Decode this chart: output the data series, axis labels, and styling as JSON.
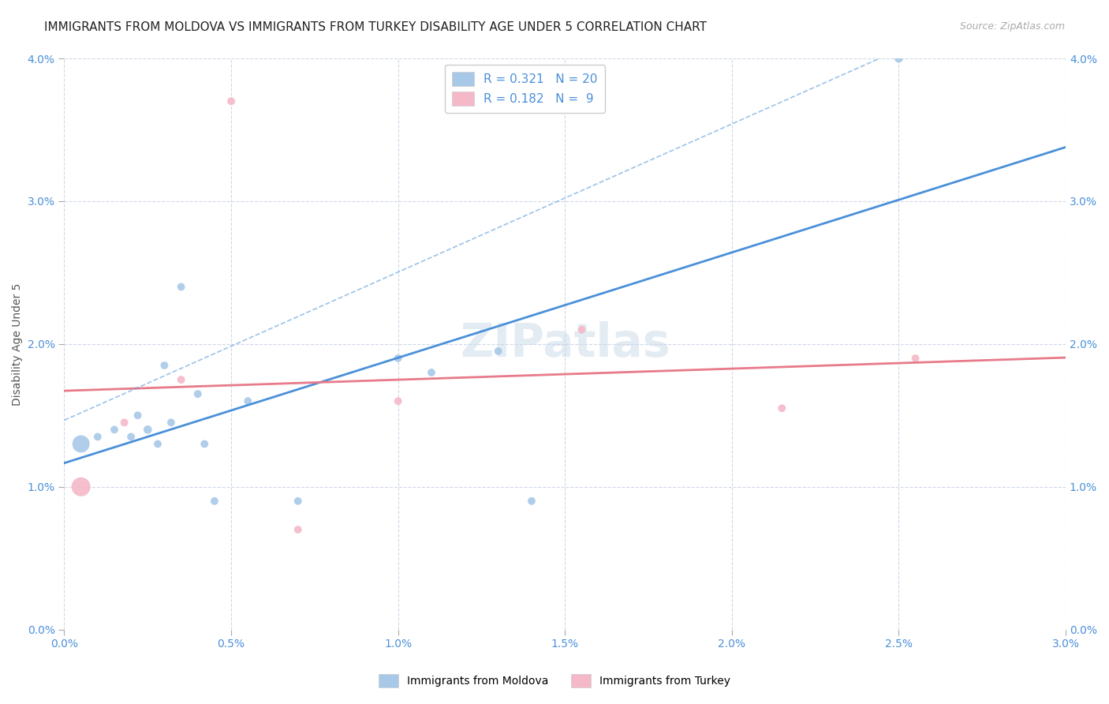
{
  "title": "IMMIGRANTS FROM MOLDOVA VS IMMIGRANTS FROM TURKEY DISABILITY AGE UNDER 5 CORRELATION CHART",
  "source": "Source: ZipAtlas.com",
  "ylabel": "Disability Age Under 5",
  "xlim": [
    0.0,
    0.03
  ],
  "ylim": [
    0.0,
    0.04
  ],
  "xtick_vals": [
    0.0,
    0.005,
    0.01,
    0.015,
    0.02,
    0.025,
    0.03
  ],
  "ytick_vals": [
    0.0,
    0.01,
    0.02,
    0.03,
    0.04
  ],
  "moldova_x": [
    0.0005,
    0.001,
    0.0015,
    0.002,
    0.0022,
    0.0025,
    0.0028,
    0.003,
    0.0032,
    0.0035,
    0.004,
    0.0042,
    0.0045,
    0.0055,
    0.007,
    0.01,
    0.011,
    0.013,
    0.014,
    0.025
  ],
  "moldova_y": [
    0.013,
    0.0135,
    0.014,
    0.0135,
    0.015,
    0.014,
    0.013,
    0.0185,
    0.0145,
    0.024,
    0.0165,
    0.013,
    0.009,
    0.016,
    0.009,
    0.019,
    0.018,
    0.0195,
    0.009,
    0.04
  ],
  "moldova_sizes": [
    250,
    50,
    50,
    50,
    50,
    60,
    50,
    50,
    50,
    50,
    50,
    50,
    50,
    50,
    50,
    50,
    50,
    50,
    50,
    60
  ],
  "turkey_x": [
    0.0005,
    0.0018,
    0.0035,
    0.005,
    0.007,
    0.01,
    0.0155,
    0.0215,
    0.0255
  ],
  "turkey_y": [
    0.01,
    0.0145,
    0.0175,
    0.037,
    0.007,
    0.016,
    0.021,
    0.0155,
    0.019
  ],
  "turkey_sizes": [
    300,
    50,
    50,
    50,
    50,
    50,
    50,
    50,
    50
  ],
  "moldova_color": "#a8c8e8",
  "turkey_color": "#f4b8c8",
  "moldova_line_color": "#4a90d9",
  "turkey_line_color": "#e87a8a",
  "R_moldova": 0.321,
  "N_moldova": 20,
  "R_turkey": 0.182,
  "N_turkey": 9,
  "background_color": "#ffffff",
  "grid_color": "#d0d8e8",
  "title_fontsize": 11,
  "axis_label_fontsize": 10,
  "tick_fontsize": 10,
  "legend_fontsize": 11,
  "watermark": "ZIPatlas"
}
